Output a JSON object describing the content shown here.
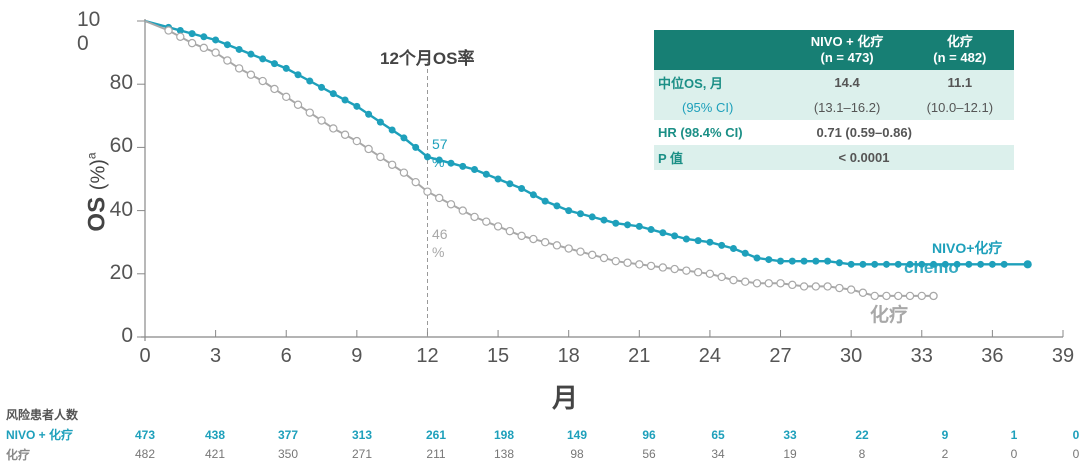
{
  "chart_data": {
    "type": "line",
    "title": "",
    "xlabel": "月",
    "ylabel": "OS (%)a",
    "xlim": [
      0,
      39
    ],
    "ylim": [
      0,
      100
    ],
    "xticks": [
      0,
      3,
      6,
      9,
      12,
      15,
      18,
      21,
      24,
      27,
      30,
      33,
      36,
      39
    ],
    "yticks": [
      0,
      20,
      40,
      60,
      80,
      100
    ],
    "ytick_labels": [
      "0",
      "20",
      "40",
      "60",
      "80",
      "10\n0"
    ],
    "grid": false,
    "series": [
      {
        "name": "NIVO+化疗",
        "color": "#1ea0bb",
        "marker": "filled-circle",
        "x": [
          0,
          1,
          2,
          3,
          4,
          5,
          6,
          7,
          8,
          9,
          10,
          11,
          12,
          13,
          14,
          15,
          16,
          17,
          18,
          19,
          20,
          21,
          22,
          23,
          24,
          25,
          26,
          27,
          28,
          29,
          30,
          31,
          32,
          33,
          34,
          35,
          36,
          37.5
        ],
        "values": [
          100,
          98,
          96,
          94,
          91,
          88,
          85,
          81,
          77,
          73,
          68,
          63,
          57,
          55,
          53,
          50,
          47,
          43,
          40,
          38,
          36,
          35,
          33,
          31,
          30,
          28,
          25,
          24,
          24,
          24,
          23,
          23,
          23,
          23,
          23,
          23,
          23,
          23
        ]
      },
      {
        "name": "化疗",
        "color": "#a8a8a8",
        "marker": "open-circle",
        "x": [
          0,
          1,
          2,
          3,
          4,
          5,
          6,
          7,
          8,
          9,
          10,
          11,
          12,
          13,
          14,
          15,
          16,
          17,
          18,
          19,
          20,
          21,
          22,
          23,
          24,
          25,
          26,
          27,
          28,
          29,
          30,
          31,
          32,
          33,
          33.5
        ],
        "values": [
          100,
          97,
          93,
          90,
          85,
          81,
          76,
          71,
          66,
          62,
          57,
          52,
          46,
          42,
          38,
          35,
          32,
          30,
          28,
          26,
          24,
          23,
          22,
          21,
          20,
          18,
          17,
          17,
          16,
          16,
          15,
          13,
          13,
          13,
          13
        ]
      }
    ],
    "annotations": [
      {
        "text": "12个月OS率",
        "x": 12
      },
      {
        "text": "57\n%",
        "x": 12,
        "y": 57,
        "series": "NIVO+化疗"
      },
      {
        "text": "46\n%",
        "x": 12,
        "y": 46,
        "series": "化疗"
      },
      {
        "text": "NIVO+化疗",
        "series_label": true
      },
      {
        "text": "chemo",
        "series_label": true
      },
      {
        "text": "化疗",
        "series_label": true
      }
    ],
    "legend": "inline curve labels",
    "reference_line": {
      "x": 12,
      "style": "dashed"
    }
  },
  "axes": {
    "y_ticks": [
      {
        "label": "10",
        "label2": "0",
        "value": 100
      },
      {
        "label": "80",
        "value": 80
      },
      {
        "label": "60",
        "value": 60
      },
      {
        "label": "40",
        "value": 40
      },
      {
        "label": "20",
        "value": 20
      },
      {
        "label": "0",
        "value": 0
      }
    ],
    "x_ticks": [
      "0",
      "3",
      "6",
      "9",
      "12",
      "15",
      "18",
      "21",
      "24",
      "27",
      "30",
      "33",
      "36",
      "39"
    ],
    "ylabel_main": "OS",
    "ylabel_unit": "(%)",
    "ylabel_sup": "a",
    "xlabel": "月"
  },
  "annotations": {
    "title_12m": "12个月OS率",
    "nivo_12m_value": "57",
    "nivo_12m_pct": "%",
    "chemo_12m_value": "46",
    "chemo_12m_pct": "%",
    "nivo_curve_label": "NIVO+化疗",
    "chemo_curve_label_en": "chemo",
    "chemo_curve_label": "化疗"
  },
  "stats_table": {
    "headers": [
      "",
      "NIVO + 化疗",
      "化疗"
    ],
    "header_sub": [
      "",
      "(n = 473)",
      "(n = 482)"
    ],
    "rows": [
      {
        "label": "中位OS, 月",
        "nivo": "14.4",
        "chemo": "11.1"
      },
      {
        "label": "(95% CI)",
        "nivo": "(13.1–16.2)",
        "chemo": "(10.0–12.1)"
      },
      {
        "label": "HR (98.4% CI)",
        "value": "0.71 (0.59–0.86)"
      },
      {
        "label": "P 值",
        "value": "< 0.0001"
      }
    ],
    "header_color": "#177f74",
    "shade_color": "#dcf0ec"
  },
  "risk_table": {
    "title": "风险患者人数",
    "nivo_label": "NIVO + 化疗",
    "chemo_label": "化疗",
    "nivo": [
      "473",
      "438",
      "377",
      "313",
      "261",
      "198",
      "149",
      "96",
      "65",
      "33",
      "22",
      "9",
      "1",
      "0"
    ],
    "chemo": [
      "482",
      "421",
      "350",
      "271",
      "211",
      "138",
      "98",
      "56",
      "34",
      "19",
      "8",
      "2",
      "0",
      "0"
    ]
  },
  "colors": {
    "nivo": "#1ea0bb",
    "chemo": "#a8a8a8",
    "axis": "#777777",
    "text": "#555555"
  }
}
